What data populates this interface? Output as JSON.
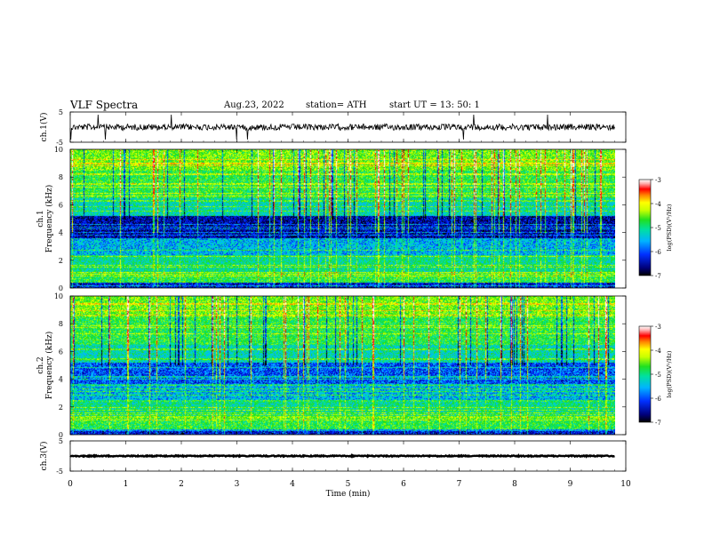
{
  "header": {
    "title": "VLF  Spectra",
    "date": "Aug.23, 2022",
    "station": "station= ATH",
    "start": "start  UT  =    13: 50: 1"
  },
  "chart_data": [
    {
      "type": "line",
      "name": "ch1-waveform",
      "ylabel": "ch.1(V)",
      "yticks": [
        5,
        -5
      ],
      "ylim": [
        -5,
        5
      ],
      "xlim": [
        0,
        10
      ],
      "data_end_min": 9.8
    },
    {
      "type": "heatmap",
      "name": "ch1-spectrogram",
      "ylabel": "ch.1\nFrequency  (kHz)",
      "ylabel_line1": "ch.1",
      "ylabel_line2": "Frequency  (kHz)",
      "yticks": [
        0,
        2,
        4,
        6,
        8,
        10
      ],
      "ylim": [
        0,
        10
      ],
      "xlim": [
        0,
        10
      ],
      "data_end_min": 9.8,
      "colorbar": {
        "label": "log(PSD)(V²/Hz)",
        "ticks": [
          -3,
          -4,
          -5,
          -6,
          -7
        ],
        "range": [
          -7,
          -3
        ]
      }
    },
    {
      "type": "heatmap",
      "name": "ch2-spectrogram",
      "ylabel_line1": "ch.2",
      "ylabel_line2": "Frequency  (kHz)",
      "yticks": [
        0,
        2,
        4,
        6,
        8,
        10
      ],
      "ylim": [
        0,
        10
      ],
      "xlim": [
        0,
        10
      ],
      "data_end_min": 9.8,
      "colorbar": {
        "label": "log(PSD)(V²/Hz)",
        "ticks": [
          -3,
          -4,
          -5,
          -6,
          -7
        ],
        "range": [
          -7,
          -3
        ]
      }
    },
    {
      "type": "line",
      "name": "ch3-waveform",
      "ylabel": "ch.3(V)",
      "yticks": [
        5,
        -5
      ],
      "ylim": [
        -5,
        5
      ],
      "xlim": [
        0,
        10
      ],
      "data_end_min": 9.8
    }
  ],
  "xaxis": {
    "label": "Time  (min)",
    "ticks": [
      0,
      1,
      2,
      3,
      4,
      5,
      6,
      7,
      8,
      9,
      10
    ]
  },
  "colors": {
    "colormap": [
      "#000000",
      "#0000a0",
      "#0030ff",
      "#00b4ff",
      "#00e0a0",
      "#20e020",
      "#a0ff00",
      "#ffff00",
      "#ff8000",
      "#ff0000",
      "#ffd0d0",
      "#ffffff"
    ]
  }
}
